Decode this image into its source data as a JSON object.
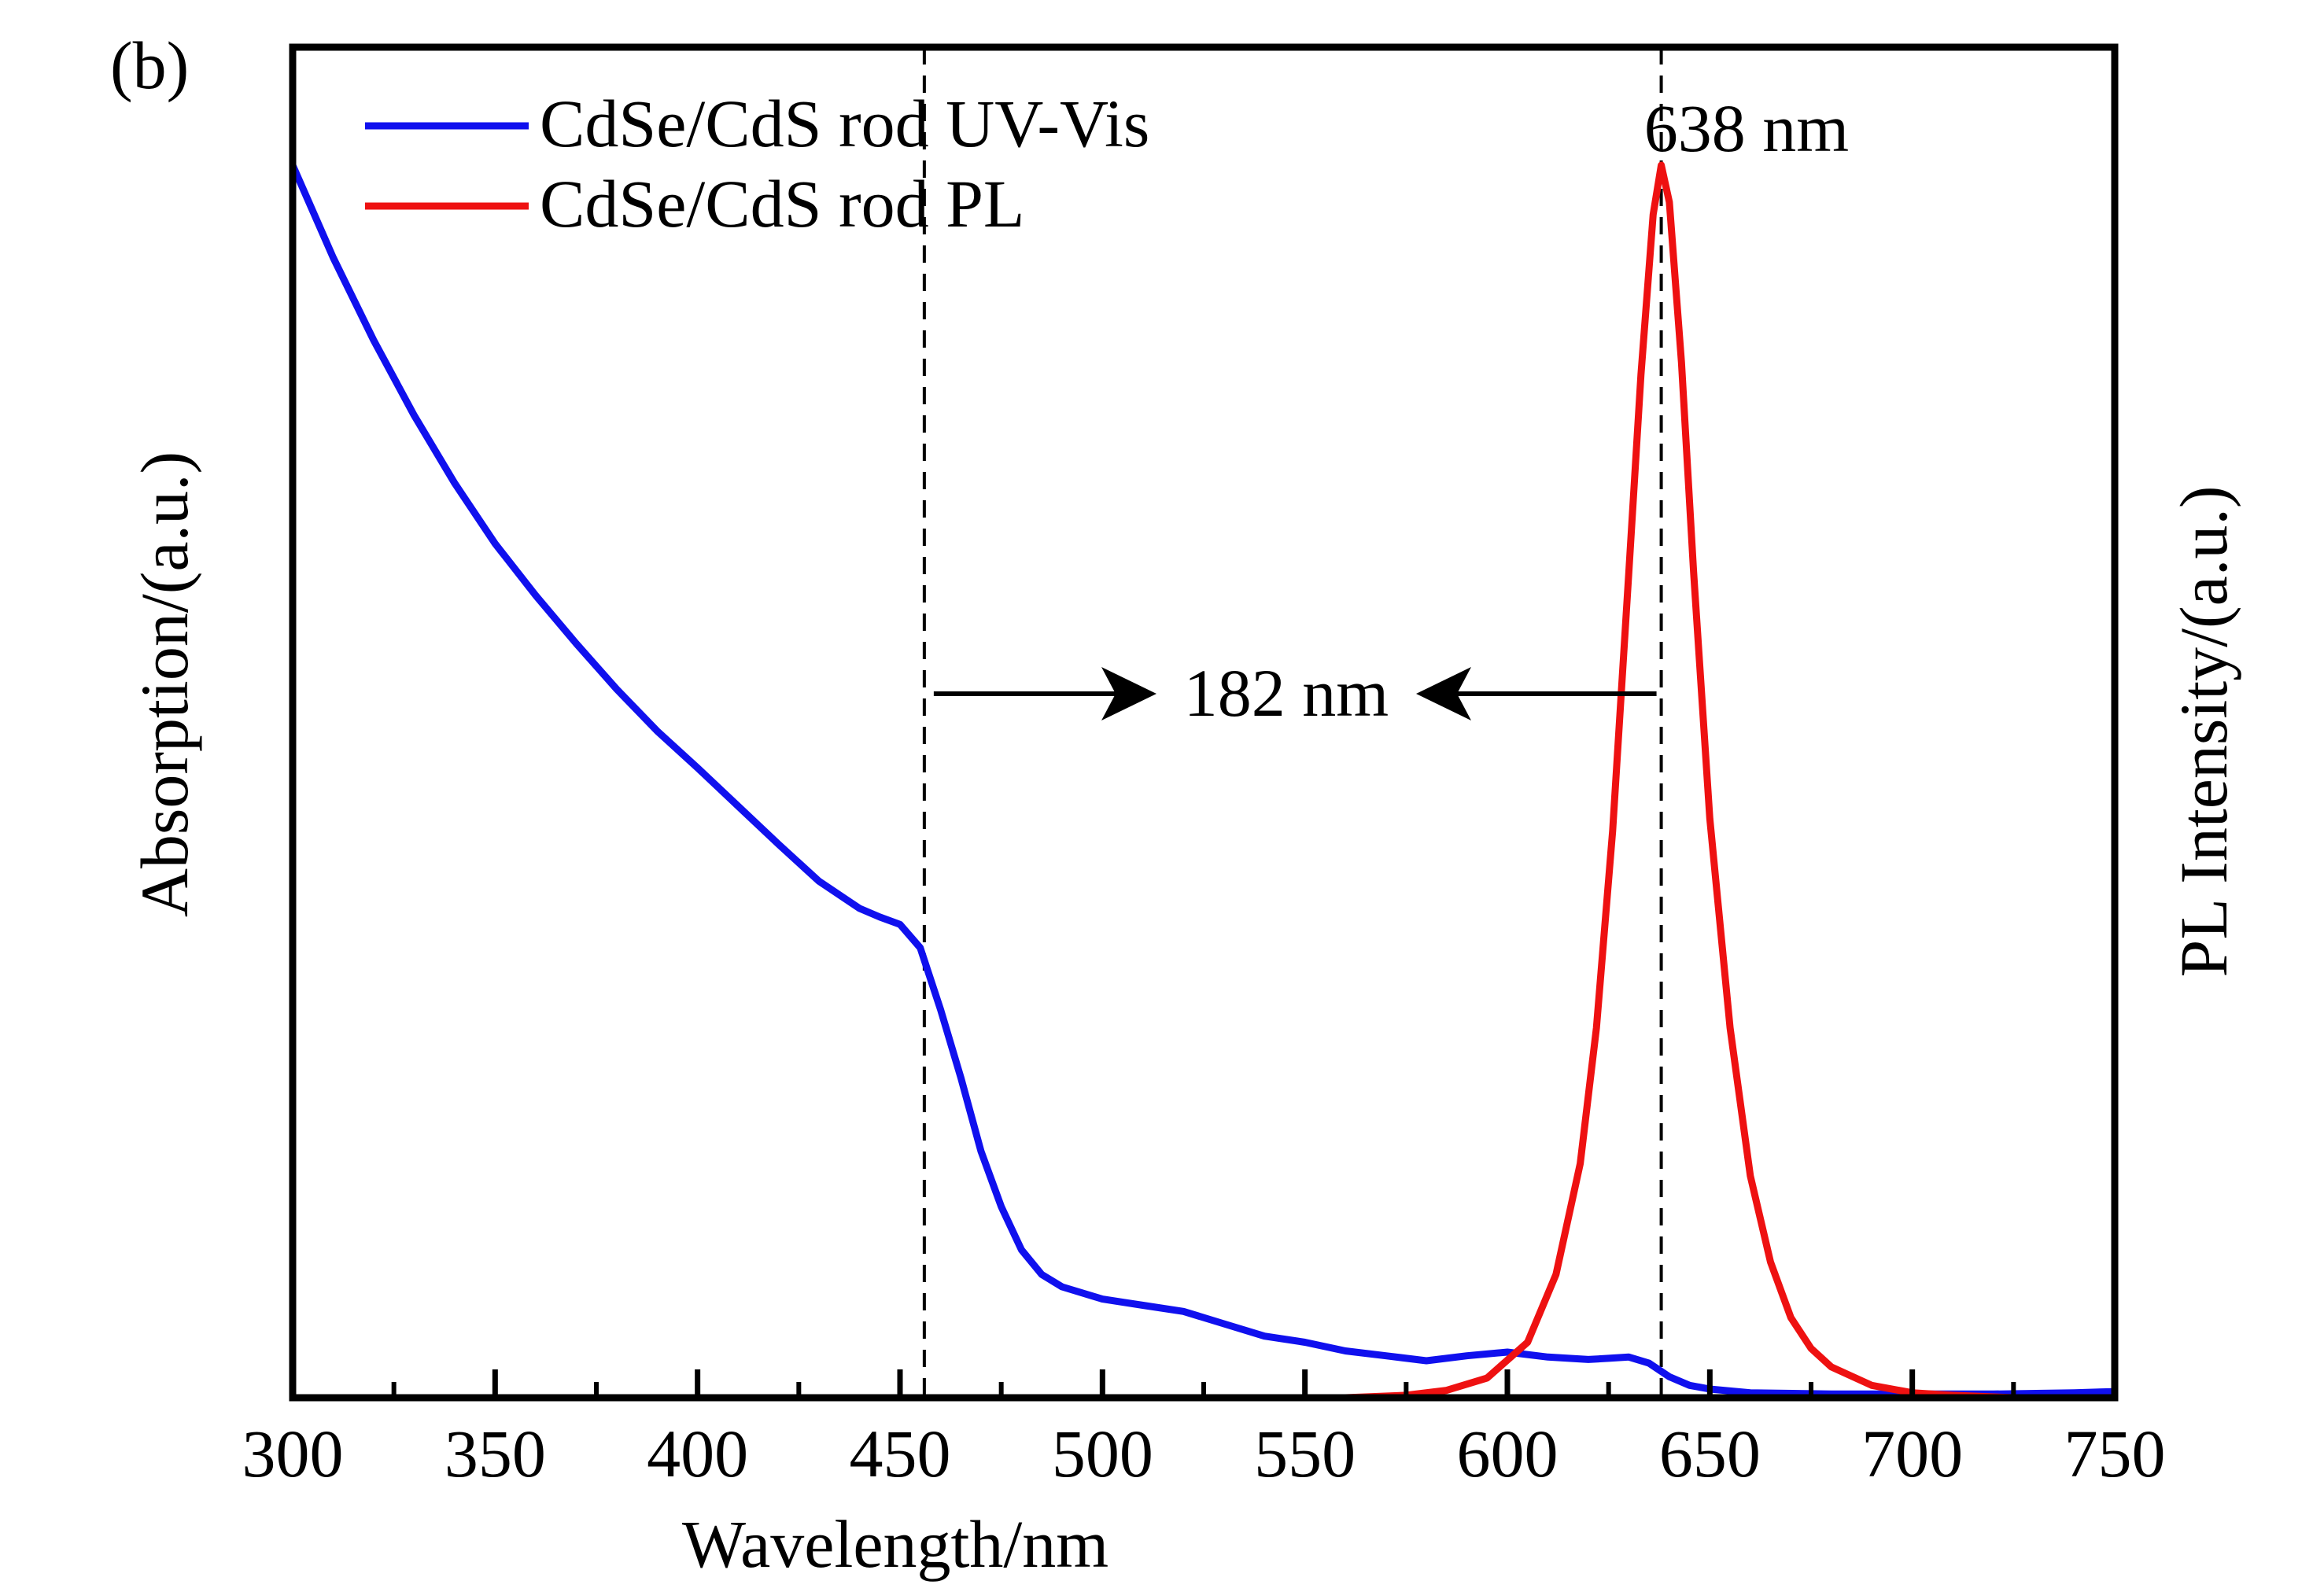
{
  "chart_data": {
    "type": "line",
    "panel_label": "(b)",
    "xlabel": "Wavelength/nm",
    "ylabel_left": "Absorption/(a.u.)",
    "ylabel_right": "PL Intensity/(a.u.)",
    "xlim": [
      300,
      750
    ],
    "ylim": [
      0,
      1
    ],
    "x_ticks": [
      300,
      350,
      400,
      450,
      500,
      550,
      600,
      650,
      700,
      750
    ],
    "x_tick_labels": [
      "300",
      "350",
      "400",
      "450",
      "500",
      "550",
      "600",
      "650",
      "700",
      "750"
    ],
    "x_minor_ticks": [
      325,
      375,
      425,
      475,
      525,
      575,
      625,
      675,
      725
    ],
    "legend": {
      "position": "top-left"
    },
    "series": [
      {
        "name": "CdSe/CdS rod UV-Vis",
        "color": "#1010ee",
        "x": [
          300,
          310,
          320,
          330,
          340,
          350,
          360,
          370,
          380,
          390,
          400,
          410,
          420,
          430,
          440,
          445,
          450,
          455,
          460,
          465,
          470,
          475,
          480,
          485,
          490,
          500,
          510,
          520,
          530,
          540,
          550,
          560,
          570,
          580,
          590,
          600,
          610,
          620,
          625,
          630,
          635,
          640,
          645,
          650,
          660,
          680,
          700,
          720,
          740,
          750
        ],
        "y": [
          1.0,
          0.925,
          0.858,
          0.797,
          0.742,
          0.693,
          0.651,
          0.612,
          0.575,
          0.541,
          0.511,
          0.48,
          0.449,
          0.419,
          0.397,
          0.39,
          0.384,
          0.365,
          0.315,
          0.26,
          0.2,
          0.155,
          0.12,
          0.1,
          0.09,
          0.08,
          0.075,
          0.07,
          0.06,
          0.05,
          0.045,
          0.038,
          0.034,
          0.03,
          0.034,
          0.037,
          0.033,
          0.031,
          0.032,
          0.033,
          0.028,
          0.017,
          0.01,
          0.007,
          0.004,
          0.003,
          0.003,
          0.003,
          0.004,
          0.005
        ]
      },
      {
        "name": "CdSe/CdS rod PL",
        "color": "#ee1111",
        "x": [
          498,
          520,
          540,
          560,
          575,
          585,
          595,
          605,
          612,
          618,
          622,
          626,
          630,
          633,
          636,
          638,
          640,
          643,
          646,
          650,
          655,
          660,
          665,
          670,
          675,
          680,
          690,
          700,
          710,
          725,
          740
        ],
        "y": [
          0.0,
          0.0,
          0.0,
          0.0,
          0.002,
          0.006,
          0.016,
          0.045,
          0.1,
          0.19,
          0.3,
          0.46,
          0.67,
          0.83,
          0.96,
          1.0,
          0.97,
          0.84,
          0.67,
          0.47,
          0.3,
          0.18,
          0.11,
          0.065,
          0.04,
          0.025,
          0.01,
          0.004,
          0.002,
          0.0,
          0.0
        ]
      }
    ],
    "reference_lines": [
      {
        "x": 456,
        "style": "dashed"
      },
      {
        "x": 638,
        "style": "dashed"
      }
    ],
    "annotations": {
      "peak_label": "638 nm",
      "shift_label": "182 nm"
    }
  }
}
